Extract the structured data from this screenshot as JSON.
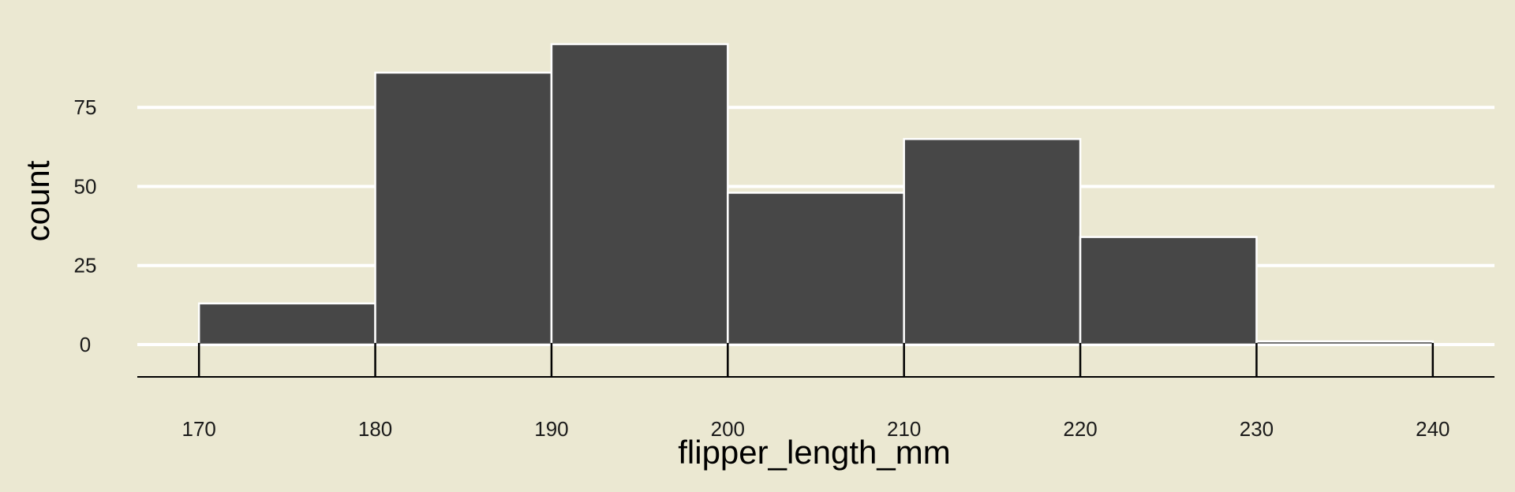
{
  "chart_data": {
    "type": "bar",
    "subtype": "histogram",
    "xlabel": "flipper_length_mm",
    "ylabel": "count",
    "bins": [
      {
        "start": 170,
        "end": 180,
        "count": 13
      },
      {
        "start": 180,
        "end": 190,
        "count": 86
      },
      {
        "start": 190,
        "end": 200,
        "count": 95
      },
      {
        "start": 200,
        "end": 210,
        "count": 48
      },
      {
        "start": 210,
        "end": 220,
        "count": 65
      },
      {
        "start": 220,
        "end": 230,
        "count": 34
      },
      {
        "start": 230,
        "end": 240,
        "count": 1
      }
    ],
    "xticks": [
      170,
      180,
      190,
      200,
      210,
      220,
      230,
      240
    ],
    "yticks": [
      0,
      25,
      50,
      75
    ],
    "xlim": [
      166.5,
      243.5
    ],
    "ylim": [
      -5,
      96
    ],
    "grid": {
      "horizontal": true,
      "vertical": false
    },
    "colors": {
      "background": "#EBE8D2",
      "bar_fill": "#474747",
      "bar_edge": "#FFFFFF",
      "gridline": "#FFFFFF",
      "axis_line": "#000000"
    }
  }
}
